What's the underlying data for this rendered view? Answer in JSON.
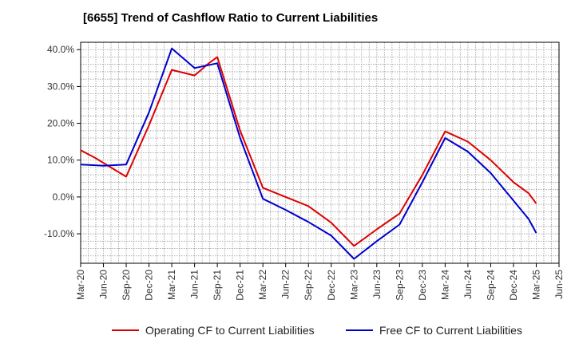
{
  "chart_data": {
    "type": "line",
    "title": "[6655]  Trend of Cashflow Ratio to Current Liabilities",
    "xlabel": "",
    "ylabel": "",
    "categories": [
      "Mar-20",
      "Jun-20",
      "Sep-20",
      "Dec-20",
      "Mar-21",
      "Jun-21",
      "Sep-21",
      "Dec-21",
      "Mar-22",
      "Jun-22",
      "Sep-22",
      "Dec-22",
      "Mar-23",
      "Jun-23",
      "Sep-23",
      "Dec-23",
      "Mar-24",
      "Jun-24",
      "Sep-24",
      "Dec-24",
      "Mar-25",
      "Jun-25"
    ],
    "ylim": [
      -18,
      42
    ],
    "yticks": [
      40,
      30,
      20,
      10,
      0,
      -10
    ],
    "ytick_labels": [
      "40.0%",
      "30.0%",
      "20.0%",
      "10.0%",
      "0.0%",
      "-10.0%"
    ],
    "grid": true,
    "legend_position": "bottom",
    "series": [
      {
        "name": "Operating CF to Current Liabilities",
        "color": "#dd0000",
        "points": [
          {
            "x": "Mar-20",
            "y": 12.7
          },
          {
            "x": "May-20",
            "y": 10.5
          },
          {
            "x": "Jul-20",
            "y": 8.0
          },
          {
            "x": "Sep-20",
            "y": 5.5
          },
          {
            "x": "Dec-20",
            "y": 19.5
          },
          {
            "x": "Mar-21",
            "y": 34.5
          },
          {
            "x": "Jun-21",
            "y": 33.0
          },
          {
            "x": "Aug-21",
            "y": 36.5
          },
          {
            "x": "Sep-21",
            "y": 38.0
          },
          {
            "x": "Dec-21",
            "y": 18.0
          },
          {
            "x": "Mar-22",
            "y": 2.5
          },
          {
            "x": "Jun-22",
            "y": 0.0
          },
          {
            "x": "Sep-22",
            "y": -2.5
          },
          {
            "x": "Dec-22",
            "y": -7.0
          },
          {
            "x": "Mar-23",
            "y": -13.3
          },
          {
            "x": "Jun-23",
            "y": -8.8
          },
          {
            "x": "Sep-23",
            "y": -4.5
          },
          {
            "x": "Dec-23",
            "y": 6.0
          },
          {
            "x": "Mar-24",
            "y": 17.8
          },
          {
            "x": "Jun-24",
            "y": 15.0
          },
          {
            "x": "Sep-24",
            "y": 10.0
          },
          {
            "x": "Dec-24",
            "y": 4.0
          },
          {
            "x": "Feb-25",
            "y": 1.0
          },
          {
            "x": "Mar-25",
            "y": -1.8
          }
        ]
      },
      {
        "name": "Free CF to Current Liabilities",
        "color": "#0000cc",
        "points": [
          {
            "x": "Mar-20",
            "y": 8.8
          },
          {
            "x": "Jun-20",
            "y": 8.5
          },
          {
            "x": "Sep-20",
            "y": 8.8
          },
          {
            "x": "Dec-20",
            "y": 23.0
          },
          {
            "x": "Mar-21",
            "y": 40.3
          },
          {
            "x": "Jun-21",
            "y": 35.0
          },
          {
            "x": "Sep-21",
            "y": 36.3
          },
          {
            "x": "Dec-21",
            "y": 16.0
          },
          {
            "x": "Mar-22",
            "y": -0.5
          },
          {
            "x": "Jun-22",
            "y": -3.5
          },
          {
            "x": "Sep-22",
            "y": -6.8
          },
          {
            "x": "Dec-22",
            "y": -10.5
          },
          {
            "x": "Mar-23",
            "y": -16.8
          },
          {
            "x": "Jun-23",
            "y": -12.0
          },
          {
            "x": "Sep-23",
            "y": -7.5
          },
          {
            "x": "Dec-23",
            "y": 4.0
          },
          {
            "x": "Mar-24",
            "y": 16.0
          },
          {
            "x": "Jun-24",
            "y": 12.3
          },
          {
            "x": "Sep-24",
            "y": 6.5
          },
          {
            "x": "Dec-24",
            "y": -1.0
          },
          {
            "x": "Feb-25",
            "y": -6.0
          },
          {
            "x": "Mar-25",
            "y": -9.8
          }
        ]
      }
    ]
  }
}
